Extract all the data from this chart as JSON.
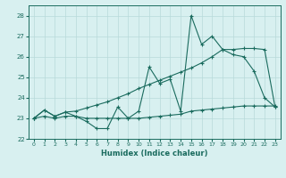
{
  "xlabel": "Humidex (Indice chaleur)",
  "x_values": [
    0,
    1,
    2,
    3,
    4,
    5,
    6,
    7,
    8,
    9,
    10,
    11,
    12,
    13,
    14,
    15,
    16,
    17,
    18,
    19,
    20,
    21,
    22,
    23
  ],
  "y_main": [
    23.0,
    23.4,
    23.1,
    23.3,
    23.1,
    22.85,
    22.5,
    22.5,
    23.55,
    23.0,
    23.35,
    25.5,
    24.7,
    24.9,
    23.35,
    28.0,
    26.6,
    27.0,
    26.35,
    26.1,
    26.0,
    25.3,
    24.0,
    23.55
  ],
  "y_min": [
    23.0,
    23.1,
    23.0,
    23.1,
    23.1,
    23.0,
    23.0,
    23.0,
    23.0,
    23.0,
    23.0,
    23.05,
    23.1,
    23.15,
    23.2,
    23.35,
    23.4,
    23.45,
    23.5,
    23.55,
    23.6,
    23.6,
    23.6,
    23.6
  ],
  "y_max": [
    23.0,
    23.4,
    23.1,
    23.3,
    23.35,
    23.5,
    23.65,
    23.8,
    24.0,
    24.2,
    24.45,
    24.65,
    24.85,
    25.05,
    25.25,
    25.45,
    25.7,
    26.0,
    26.35,
    26.35,
    26.4,
    26.4,
    26.35,
    23.55
  ],
  "ylim": [
    22,
    28.5
  ],
  "xlim": [
    -0.5,
    23.5
  ],
  "yticks": [
    22,
    23,
    24,
    25,
    26,
    27,
    28
  ],
  "xticks": [
    0,
    1,
    2,
    3,
    4,
    5,
    6,
    7,
    8,
    9,
    10,
    11,
    12,
    13,
    14,
    15,
    16,
    17,
    18,
    19,
    20,
    21,
    22,
    23
  ],
  "line_color": "#1a6b5e",
  "bg_color": "#d8f0f0",
  "grid_color": "#b8dada",
  "marker": "+"
}
